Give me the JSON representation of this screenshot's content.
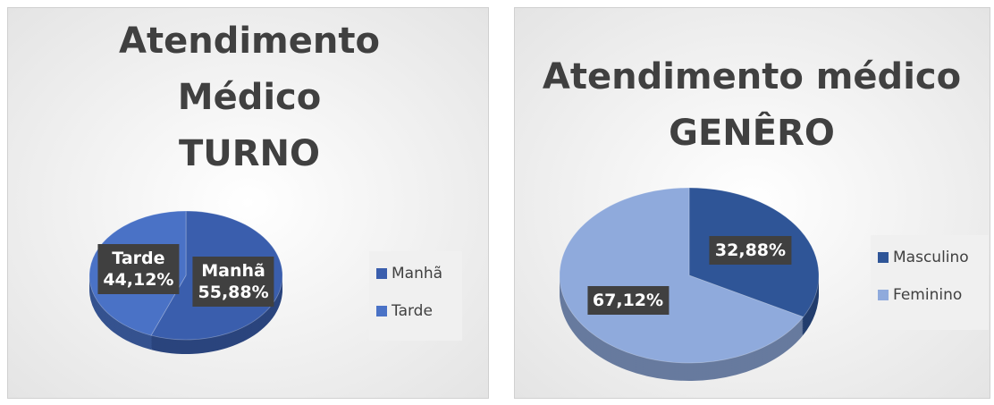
{
  "chart_data": [
    {
      "type": "pie",
      "title": "Atendimento Médico TURNO",
      "categories": [
        "Manhã",
        "Tarde"
      ],
      "values": [
        55.88,
        44.12
      ],
      "value_labels": [
        "55,88%",
        "44,12%"
      ],
      "colors": [
        "#3a5ead",
        "#4a72c6"
      ],
      "legend": "right"
    },
    {
      "type": "pie",
      "title": "Atendimento médico GENÊRO",
      "categories": [
        "Masculino",
        "Feminino"
      ],
      "values": [
        32.88,
        67.12
      ],
      "value_labels": [
        "32,88%",
        "67,12%"
      ],
      "colors": [
        "#2f5597",
        "#8faadc"
      ],
      "legend": "right"
    }
  ]
}
